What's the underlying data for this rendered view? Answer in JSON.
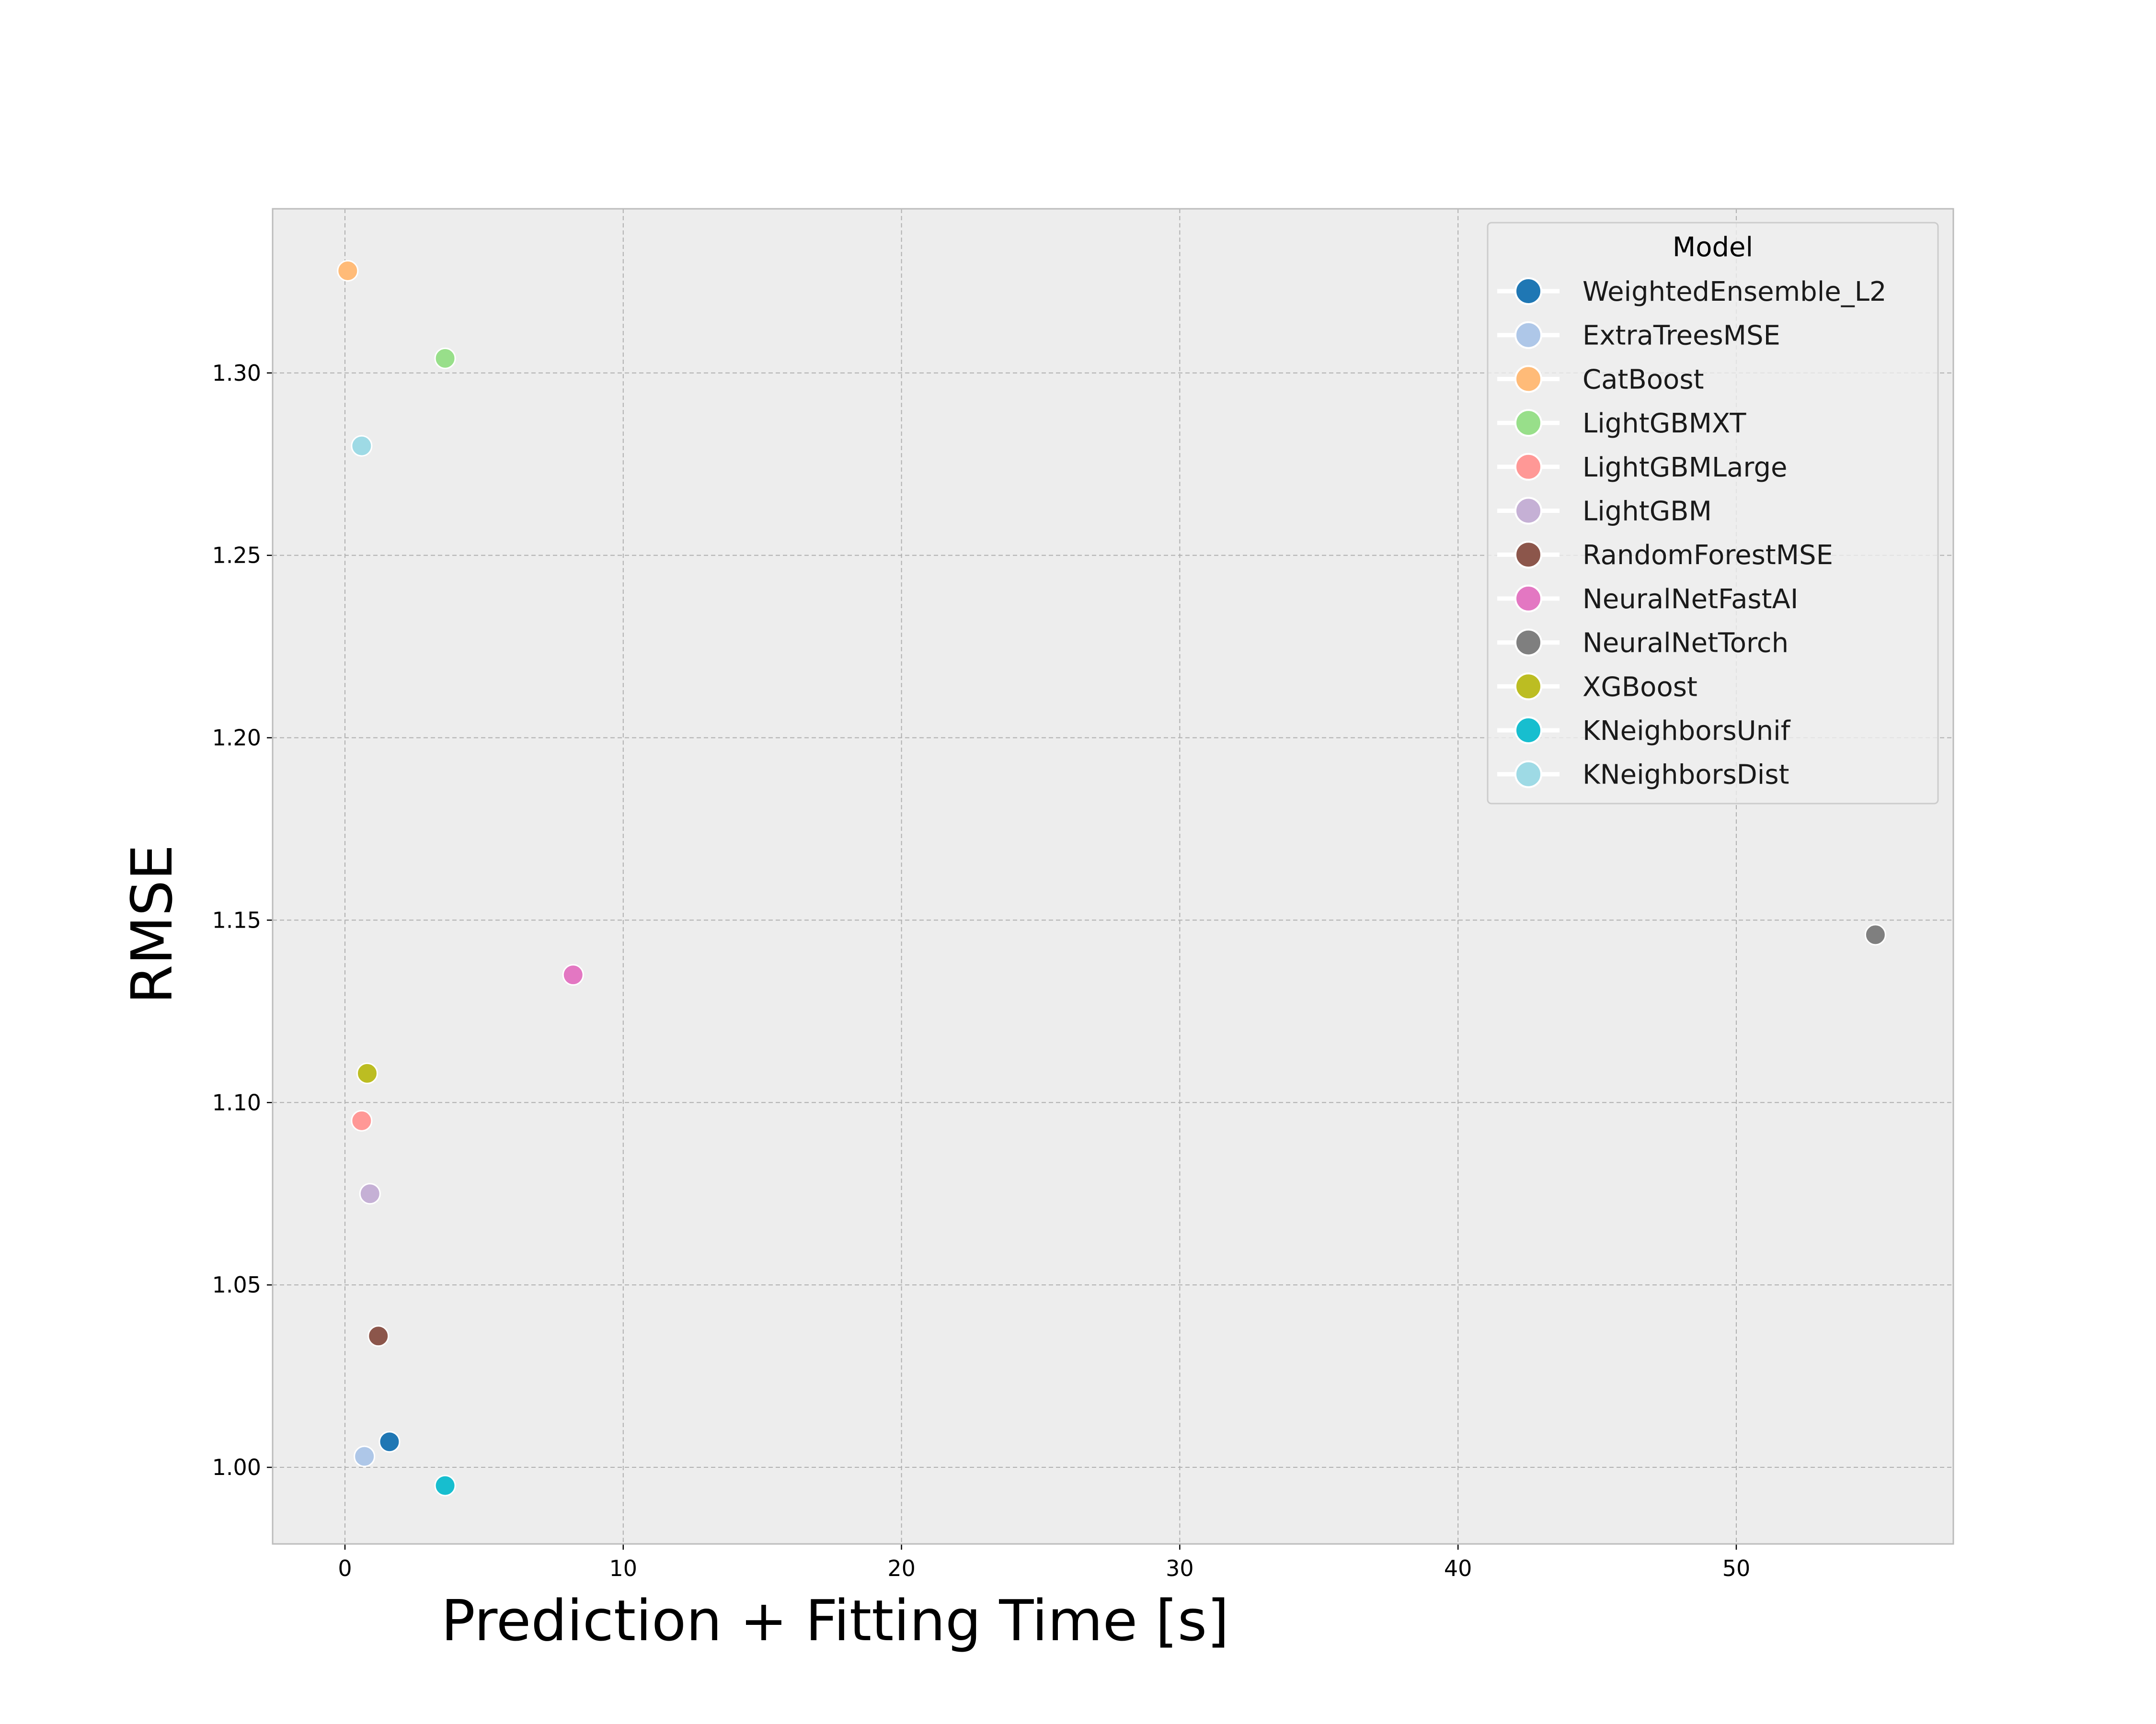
{
  "chart_data": {
    "type": "scatter",
    "title": "",
    "xlabel": "Prediction + Fitting Time [s]",
    "ylabel": "RMSE",
    "xlim": [
      -2.6,
      57.8
    ],
    "ylim": [
      0.979,
      1.345
    ],
    "xticks": [
      0,
      10,
      20,
      30,
      40,
      50
    ],
    "xtick_labels": [
      "0",
      "10",
      "20",
      "30",
      "40",
      "50"
    ],
    "yticks": [
      1.0,
      1.05,
      1.1,
      1.15,
      1.2,
      1.25,
      1.3
    ],
    "ytick_labels": [
      "1.00",
      "1.05",
      "1.10",
      "1.15",
      "1.20",
      "1.25",
      "1.30"
    ],
    "grid": true,
    "legend_title": "Model",
    "legend_position": "top-right",
    "plot_background": "#ededed",
    "series": [
      {
        "name": "WeightedEnsemble_L2",
        "color": "#1f77b4",
        "x": 1.6,
        "y": 1.007
      },
      {
        "name": "ExtraTreesMSE",
        "color": "#aec7e8",
        "x": 0.7,
        "y": 1.003
      },
      {
        "name": "CatBoost",
        "color": "#ffbb78",
        "x": 0.1,
        "y": 1.328
      },
      {
        "name": "LightGBMXT",
        "color": "#98df8a",
        "x": 3.6,
        "y": 1.304
      },
      {
        "name": "LightGBMLarge",
        "color": "#ff9896",
        "x": 0.6,
        "y": 1.095
      },
      {
        "name": "LightGBM",
        "color": "#c5b0d5",
        "x": 0.9,
        "y": 1.075
      },
      {
        "name": "RandomForestMSE",
        "color": "#8c564b",
        "x": 1.2,
        "y": 1.036
      },
      {
        "name": "NeuralNetFastAI",
        "color": "#e377c2",
        "x": 8.2,
        "y": 1.135
      },
      {
        "name": "NeuralNetTorch",
        "color": "#7f7f7f",
        "x": 55.0,
        "y": 1.146
      },
      {
        "name": "XGBoost",
        "color": "#bcbd22",
        "x": 0.8,
        "y": 1.108
      },
      {
        "name": "KNeighborsUnif",
        "color": "#17becf",
        "x": 3.6,
        "y": 0.995
      },
      {
        "name": "KNeighborsDist",
        "color": "#9edae5",
        "x": 0.6,
        "y": 1.28
      }
    ]
  }
}
